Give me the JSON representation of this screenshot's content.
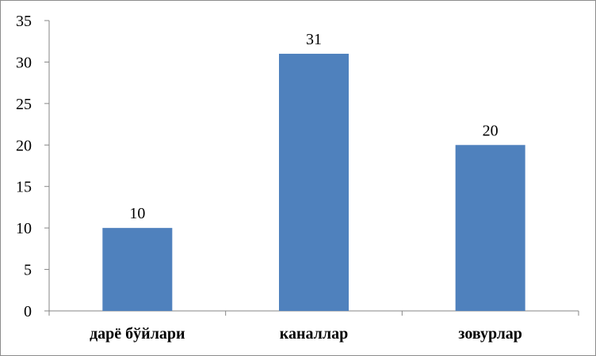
{
  "chart_data": {
    "type": "bar",
    "categories": [
      "дарё бўйлари",
      "каналлар",
      "зовурлар"
    ],
    "values": [
      10,
      31,
      20
    ],
    "data_labels": [
      "10",
      "31",
      "20"
    ],
    "ylim": [
      0,
      35
    ],
    "yticks": [
      0,
      5,
      10,
      15,
      20,
      25,
      30,
      35
    ],
    "ytick_labels": [
      "0",
      "5",
      "10",
      "15",
      "20",
      "25",
      "30",
      "35"
    ],
    "grid": false,
    "legend": "none",
    "bar_color": "#4f81bd"
  }
}
